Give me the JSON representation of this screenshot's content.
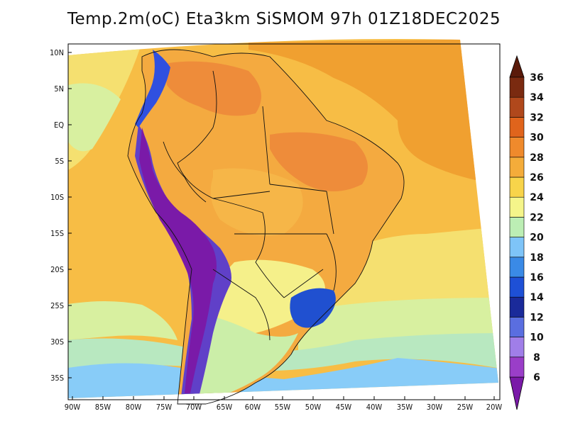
{
  "title": "Temp.2m(oC) Eta3km SiSMOM 97h 01Z18DEC2025",
  "lat_labels": [
    "10N",
    "5N",
    "EQ",
    "5S",
    "10S",
    "15S",
    "20S",
    "25S",
    "30S",
    "35S"
  ],
  "lon_labels": [
    "90W",
    "85W",
    "80W",
    "75W",
    "70W",
    "65W",
    "60W",
    "55W",
    "50W",
    "45W",
    "40W",
    "35W",
    "30W",
    "25W",
    "20W"
  ],
  "colorbar": {
    "units": "oC",
    "levels": [
      "6",
      "8",
      "10",
      "12",
      "14",
      "16",
      "18",
      "20",
      "22",
      "24",
      "26",
      "28",
      "30",
      "32",
      "34",
      "36"
    ],
    "colors": [
      "#7a1aa8",
      "#9a3ec8",
      "#a07ee8",
      "#5a6ee0",
      "#1a2a9a",
      "#1e50d6",
      "#3a8ae6",
      "#7ec4f8",
      "#bceeb4",
      "#f5f58a",
      "#f8d44a",
      "#f4ac3a",
      "#ef8a2c",
      "#e0641c",
      "#b0481c",
      "#7a2a10",
      "#5a1a0a"
    ]
  },
  "map": {
    "colors": {
      "ocean_warm": "#f7bd45",
      "ocean_hot": "#f0a030",
      "ocean_mild": "#f5e070",
      "ocean_cool": "#d8f0a0",
      "ocean_cold": "#b8e8c0",
      "ocean_blue": "#88ccf8",
      "land_hot": "#ee8c3a",
      "land_warm": "#f4aa40",
      "land_orange": "#f6b648",
      "andes_purple": "#7a1aa8",
      "andes_violet": "#6040c8",
      "andes_blue": "#3050e0",
      "south_green": "#cbeea8",
      "south_yellow": "#f5f08a",
      "southeast_blue": "#2050d0"
    }
  }
}
